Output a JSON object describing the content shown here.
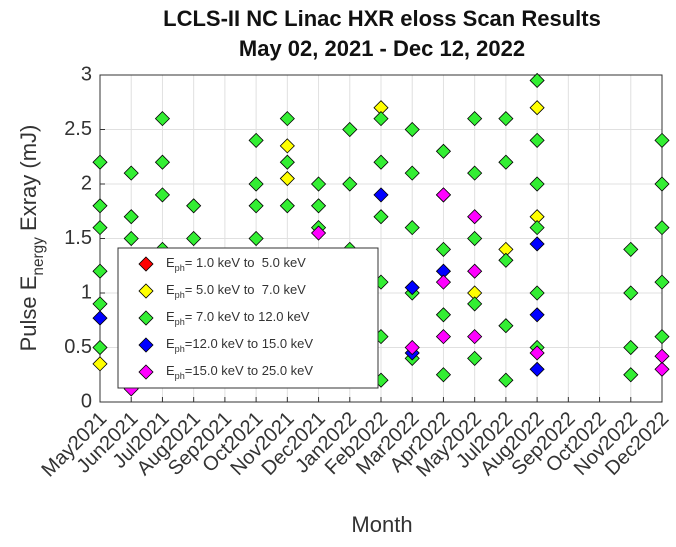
{
  "chart_data": {
    "type": "scatter",
    "title": "LCLS-II NC Linac HXR eloss Scan Results",
    "subtitle": "May 02, 2021 - Dec 12, 2022",
    "x_label": "Month",
    "y_label": "Pulse Energy Exray  (mJ)",
    "xticks": [
      "May2021",
      "Jun2021",
      "Jul2021",
      "Aug2021",
      "Sep2021",
      "Oct2021",
      "Nov2021",
      "Dec2021",
      "Jan2022",
      "Feb2022",
      "Mar2022",
      "Apr2022",
      "May2022",
      "Jul2022",
      "Aug2022",
      "Sep2022",
      "Oct2022",
      "Nov2022",
      "Dec2022"
    ],
    "ylim": [
      0,
      3
    ],
    "yticks": [
      0,
      0.5,
      1,
      1.5,
      2,
      2.5,
      3
    ],
    "grid": true,
    "series": [
      {
        "name": "Eph= 1.0 keV to  5.0 keV",
        "color": "#ff0000",
        "x": [],
        "values": []
      },
      {
        "name": "Eph= 5.0 keV to  7.0 keV",
        "color": "#ffff00",
        "x": [
          "May2021",
          "Nov2021",
          "Nov2021",
          "Feb2022",
          "Jul2022",
          "Aug2022",
          "Aug2022",
          "May2022"
        ],
        "values": [
          0.35,
          2.35,
          2.05,
          2.7,
          1.4,
          2.7,
          1.7,
          1.0
        ]
      },
      {
        "name": "Eph= 7.0 keV to 12.0 keV",
        "color": "#33ee33",
        "x": [
          "May2021",
          "May2021",
          "May2021",
          "May2021",
          "May2021",
          "May2021",
          "Jun2021",
          "Jun2021",
          "Jun2021",
          "Jun2021",
          "Jun2021",
          "Jul2021",
          "Jul2021",
          "Jul2021",
          "Jul2021",
          "Aug2021",
          "Aug2021",
          "Aug2021",
          "Oct2021",
          "Oct2021",
          "Oct2021",
          "Oct2021",
          "Nov2021",
          "Nov2021",
          "Nov2021",
          "Nov2021",
          "Dec2021",
          "Dec2021",
          "Dec2021",
          "Jan2022",
          "Jan2022",
          "Jan2022",
          "Jan2022",
          "Feb2022",
          "Feb2022",
          "Feb2022",
          "Feb2022",
          "Feb2022",
          "Feb2022",
          "Mar2022",
          "Mar2022",
          "Mar2022",
          "Mar2022",
          "Mar2022",
          "Apr2022",
          "Apr2022",
          "Apr2022",
          "Apr2022",
          "Apr2022",
          "May2022",
          "May2022",
          "May2022",
          "May2022",
          "May2022",
          "Jul2022",
          "Jul2022",
          "Jul2022",
          "Jul2022",
          "Jul2022",
          "Aug2022",
          "Aug2022",
          "Aug2022",
          "Aug2022",
          "Aug2022",
          "Aug2022",
          "Nov2022",
          "Nov2022",
          "Nov2022",
          "Nov2022",
          "Dec2022",
          "Dec2022",
          "Dec2022",
          "Dec2022",
          "Dec2022"
        ],
        "values": [
          1.2,
          1.6,
          2.2,
          0.9,
          0.5,
          1.8,
          1.5,
          2.1,
          1.0,
          0.3,
          1.7,
          2.6,
          2.2,
          1.9,
          1.4,
          1.2,
          1.8,
          1.5,
          1.8,
          2.4,
          2.0,
          1.5,
          2.6,
          2.2,
          1.8,
          1.3,
          1.6,
          2.0,
          1.8,
          2.5,
          2.0,
          1.4,
          0.8,
          2.6,
          2.2,
          1.7,
          1.1,
          0.6,
          0.2,
          2.5,
          2.1,
          1.6,
          1.0,
          0.4,
          2.3,
          1.9,
          1.4,
          0.8,
          0.25,
          2.6,
          2.1,
          1.5,
          0.9,
          0.4,
          2.6,
          2.2,
          1.3,
          0.7,
          0.2,
          2.95,
          2.4,
          2.0,
          1.6,
          1.0,
          0.5,
          1.4,
          1.0,
          0.5,
          0.25,
          2.4,
          2.0,
          1.6,
          1.1,
          0.6
        ]
      },
      {
        "name": "Eph=12.0 keV to 15.0 keV",
        "color": "#0000ff",
        "x": [
          "May2021",
          "Feb2022",
          "Mar2022",
          "Apr2022",
          "Aug2022",
          "Aug2022",
          "Aug2022",
          "Mar2022"
        ],
        "values": [
          0.77,
          1.9,
          0.45,
          1.2,
          1.45,
          0.8,
          0.3,
          1.05
        ]
      },
      {
        "name": "Eph=15.0 keV to 25.0 keV",
        "color": "#ff00ff",
        "x": [
          "Jun2021",
          "Dec2021",
          "Mar2022",
          "Apr2022",
          "Apr2022",
          "Apr2022",
          "May2022",
          "May2022",
          "May2022",
          "Aug2022",
          "Dec2022",
          "Dec2022"
        ],
        "values": [
          0.12,
          1.55,
          0.5,
          1.9,
          1.1,
          0.6,
          1.7,
          1.2,
          0.6,
          0.45,
          0.3,
          0.42
        ]
      }
    ]
  }
}
